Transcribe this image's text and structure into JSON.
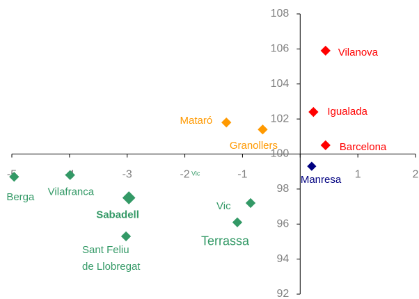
{
  "chart_data": {
    "type": "scatter",
    "xlim": [
      -5,
      2
    ],
    "xticks": [
      -5,
      -4,
      -3,
      -2,
      -1,
      0,
      1,
      2
    ],
    "ylim": [
      92,
      108
    ],
    "yticks": [
      92,
      94,
      96,
      98,
      100,
      102,
      104,
      106,
      108
    ],
    "points": [
      {
        "label": "Vilanova",
        "x": 0.44,
        "y": 105.9,
        "color": "#ff0000"
      },
      {
        "label": "Igualada",
        "x": 0.23,
        "y": 102.4,
        "color": "#ff0000"
      },
      {
        "label": "Barcelona",
        "x": 0.44,
        "y": 100.5,
        "color": "#ff0000"
      },
      {
        "label": "Manresa",
        "x": 0.2,
        "y": 99.3,
        "color": "#000080"
      },
      {
        "label": "Mataró",
        "x": -1.28,
        "y": 101.8,
        "color": "#ff9900"
      },
      {
        "label": "Granollers",
        "x": -0.65,
        "y": 101.4,
        "color": "#ff9900"
      },
      {
        "label": "Berga",
        "x": -4.96,
        "y": 98.7,
        "color": "#339966"
      },
      {
        "label": "Vilafranca",
        "x": -3.99,
        "y": 98.8,
        "color": "#339966"
      },
      {
        "label": "Sabadell",
        "x": -2.97,
        "y": 97.5,
        "color": "#339966"
      },
      {
        "label": "Vic",
        "x": -0.86,
        "y": 97.2,
        "color": "#339966"
      },
      {
        "label": "Terrassa",
        "x": -1.09,
        "y": 96.1,
        "color": "#339966"
      },
      {
        "label": [
          "Sant Feliu",
          "de Llobregat"
        ],
        "x": -3.02,
        "y": 95.3,
        "color": "#339966"
      }
    ],
    "annotations": [
      "Vic"
    ]
  }
}
